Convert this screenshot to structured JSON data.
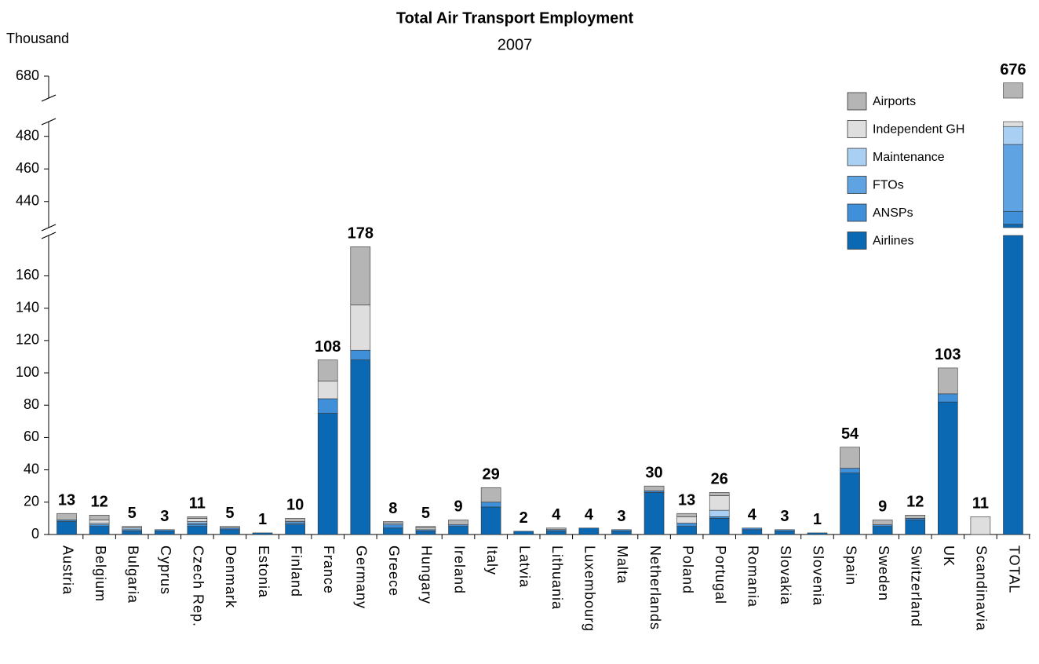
{
  "chart_data": {
    "type": "stacked_bar",
    "title": "Total Air Transport Employment",
    "subtitle": "2007",
    "y_axis_label": "Thousand",
    "categories": [
      "Austria",
      "Belgium",
      "Bulgaria",
      "Cyprus",
      "Czech Rep.",
      "Denmark",
      "Estonia",
      "Finland",
      "France",
      "Germany",
      "Greece",
      "Hungary",
      "Ireland",
      "Italy",
      "Latvia",
      "Lithuania",
      "Luxembourg",
      "Malta",
      "Netherlands",
      "Poland",
      "Portugal",
      "Romania",
      "Slovakia",
      "Slovenia",
      "Spain",
      "Sweden",
      "Switzerland",
      "UK",
      "Scandinavia",
      "TOTAL"
    ],
    "series": [
      {
        "name": "Airlines",
        "color": "#0b69b3",
        "values": [
          8,
          5,
          2,
          2,
          5,
          3,
          1,
          6,
          75,
          108,
          4,
          2,
          5,
          17,
          2,
          2,
          4,
          2,
          26,
          5,
          10,
          3,
          2,
          1,
          38,
          5,
          9,
          82,
          0,
          426
        ]
      },
      {
        "name": "ANSPs",
        "color": "#3f90d9",
        "values": [
          1,
          1,
          1,
          1,
          1,
          1,
          0,
          1,
          9,
          6,
          2,
          1,
          1,
          3,
          0,
          1,
          0,
          1,
          1,
          2,
          1,
          1,
          1,
          0,
          3,
          1,
          1,
          5,
          0,
          8
        ]
      },
      {
        "name": "FTOs",
        "color": "#5fa3e2",
        "values": [
          0,
          0,
          0,
          0,
          1,
          0,
          0,
          1,
          0,
          0,
          0,
          0,
          0,
          0,
          0,
          0,
          0,
          0,
          0,
          0,
          0,
          0,
          0,
          0,
          0,
          0,
          0,
          0,
          0,
          41
        ]
      },
      {
        "name": "Maintenance",
        "color": "#a9d0f2",
        "values": [
          0,
          1,
          1,
          0,
          1,
          0,
          0,
          0,
          0,
          0,
          1,
          0,
          0,
          0,
          0,
          0,
          0,
          0,
          0,
          0,
          4,
          0,
          0,
          0,
          0,
          0,
          0,
          0,
          0,
          11
        ]
      },
      {
        "name": "Independent GH",
        "color": "#dedede",
        "values": [
          0,
          2,
          0,
          0,
          2,
          0,
          0,
          0,
          11,
          28,
          0,
          1,
          0,
          0,
          0,
          0,
          0,
          0,
          0,
          4,
          9,
          0,
          0,
          0,
          0,
          0,
          0,
          0,
          11,
          178
        ]
      },
      {
        "name": "Airports",
        "color": "#b5b5b5",
        "values": [
          4,
          3,
          1,
          0,
          1,
          1,
          0,
          2,
          13,
          36,
          1,
          1,
          3,
          9,
          0,
          1,
          0,
          0,
          3,
          2,
          2,
          0,
          0,
          0,
          13,
          3,
          2,
          16,
          0,
          12
        ]
      }
    ],
    "totals": [
      13,
      12,
      5,
      3,
      11,
      5,
      1,
      10,
      108,
      178,
      8,
      5,
      9,
      29,
      2,
      4,
      4,
      3,
      30,
      13,
      26,
      4,
      3,
      1,
      54,
      9,
      12,
      103,
      11,
      676
    ],
    "ylim": [
      0,
      680
    ],
    "axis_breaks": [
      [
        185,
        424
      ],
      [
        489,
        667
      ]
    ],
    "yticks": [
      0,
      20,
      40,
      60,
      80,
      100,
      120,
      140,
      160,
      440,
      460,
      480,
      680
    ],
    "legend": "top-right"
  }
}
